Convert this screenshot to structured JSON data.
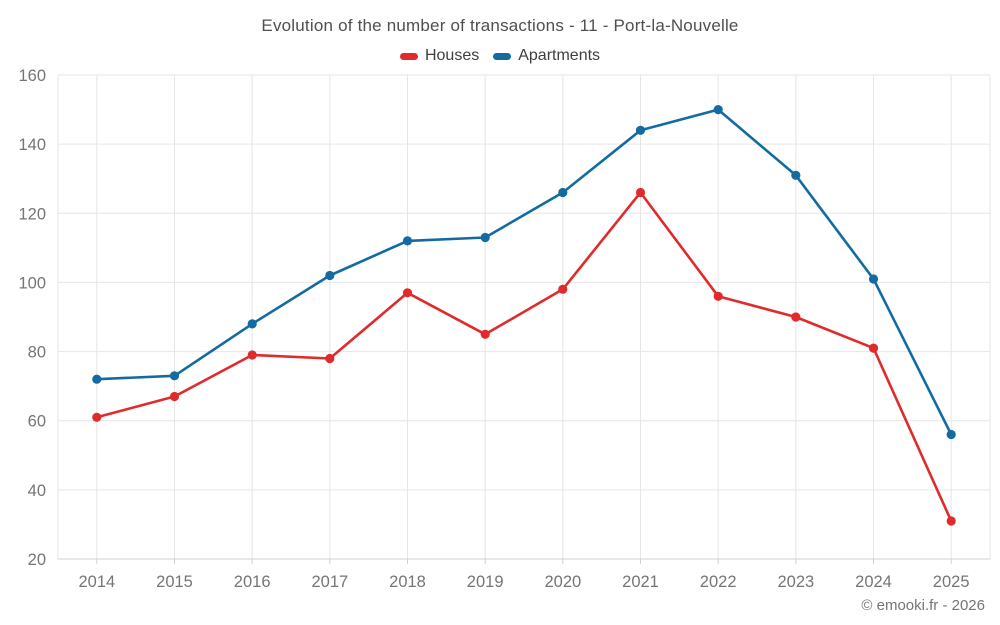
{
  "chart": {
    "title": "Evolution of the number of transactions - 11 - Port-la-Nouvelle",
    "footer_credit": "© emooki.fr - 2026"
  },
  "chart_data": {
    "type": "line",
    "categories": [
      "2014",
      "2015",
      "2016",
      "2017",
      "2018",
      "2019",
      "2020",
      "2021",
      "2022",
      "2023",
      "2024",
      "2025"
    ],
    "series": [
      {
        "name": "Houses",
        "color": "#df2b2b",
        "values": [
          61,
          67,
          79,
          78,
          97,
          85,
          98,
          126,
          96,
          90,
          81,
          31
        ]
      },
      {
        "name": "Apartments",
        "color": "#136ba1",
        "values": [
          72,
          73,
          88,
          102,
          112,
          113,
          126,
          144,
          150,
          131,
          101,
          56
        ]
      }
    ],
    "title": "Evolution of the number of transactions - 11 - Port-la-Nouvelle",
    "xlabel": "",
    "ylabel": "",
    "ylim": [
      20,
      160
    ],
    "ytick_step": 20,
    "yticks": [
      20,
      40,
      60,
      80,
      100,
      120,
      140,
      160
    ],
    "grid": true,
    "legend_position": "top"
  },
  "style_colors": {
    "grid_line": "#e6e6e6",
    "axis_line": "#ccd2dc",
    "tick_label": "#757575",
    "title_text": "#4f4f4f",
    "legend_text": "#3f3f3f"
  }
}
